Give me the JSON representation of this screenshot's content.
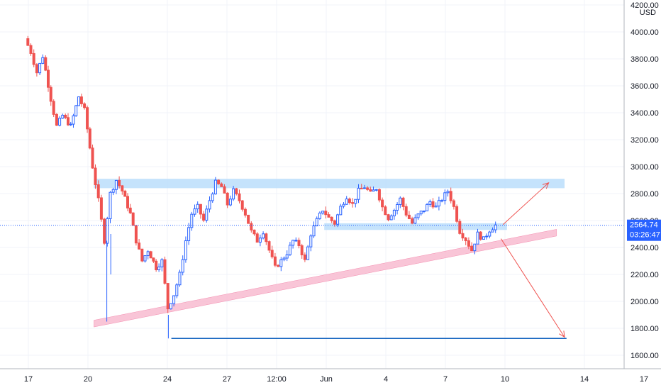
{
  "chart_data": {
    "type": "candlestick",
    "currency_label": "USD",
    "y_ticks": [
      1600,
      1800,
      2000,
      2200,
      2400,
      2600,
      2800,
      3000,
      3200,
      3400,
      3600,
      3800,
      4000,
      4200
    ],
    "y_tick_labels": [
      "1600.00",
      "1800.00",
      "2000.00",
      "2200.00",
      "2400.00",
      "2600.00",
      "2800.00",
      "3000.00",
      "3200.00",
      "3400.00",
      "3600.00",
      "3800.00",
      "4000.00",
      "4200.00"
    ],
    "x_ticks": [
      {
        "label": "17",
        "day": 17
      },
      {
        "label": "20",
        "day": 20
      },
      {
        "label": "24",
        "day": 24
      },
      {
        "label": "27",
        "day": 27
      },
      {
        "label": "12:00",
        "day": 29.5
      },
      {
        "label": "Jun",
        "day": 32
      },
      {
        "label": "4",
        "day": 35
      },
      {
        "label": "7",
        "day": 38
      },
      {
        "label": "10",
        "day": 41
      },
      {
        "label": "14",
        "day": 45
      },
      {
        "label": "17",
        "day": 48
      }
    ],
    "last_price": "2564.74",
    "countdown": "03:26:47",
    "colors": {
      "up": "#2962ff",
      "down": "#ef5350",
      "resistance_zone": "#bbdefb",
      "trendline_zone": "#f8bbd0",
      "arrow": "#ef5350",
      "support_line": "#1565c0",
      "price_line": "#2962ff",
      "grid": "#f0f3fa"
    },
    "zones": [
      {
        "name": "resistance",
        "day_from": 20.3,
        "day_to": 44.0,
        "price_from": 2840,
        "price_to": 2910
      },
      {
        "name": "support-zone",
        "day_from": 31.9,
        "day_to": 41.1,
        "price_from": 2530,
        "price_to": 2580
      }
    ],
    "trendline_band": {
      "day_from": 20.3,
      "price_from": 1835,
      "day_to": 43.6,
      "price_to": 2510,
      "thickness": 50
    },
    "support_line": {
      "day_from": 24.2,
      "day_to": 44.1,
      "price": 1725
    },
    "arrows": [
      {
        "name": "bull-arrow",
        "day_from": 40.9,
        "price_from": 2570,
        "day_to": 43.2,
        "price_to": 2880
      },
      {
        "name": "bear-arrow",
        "day_from": 40.8,
        "price_from": 2465,
        "day_to": 44.0,
        "price_to": 1735
      }
    ],
    "series": [
      {
        "name": "",
        "values": []
      }
    ]
  }
}
